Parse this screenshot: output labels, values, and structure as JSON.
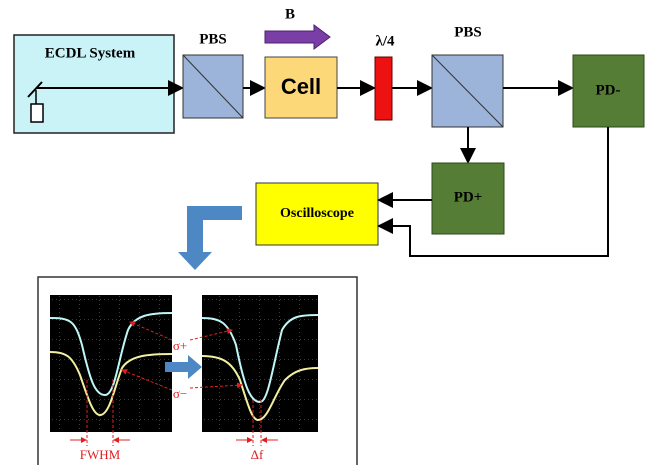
{
  "labels": {
    "ecdl": "ECDL System",
    "pbs1": "PBS",
    "field": "B",
    "cell": "Cell",
    "waveplate": "λ/4",
    "pbs2": "PBS",
    "pd_minus": "PD-",
    "pd_plus": "PD+",
    "oscilloscope": "Oscilloscope"
  },
  "inset": {
    "sigma_plus": "σ+",
    "sigma_minus": "σ−",
    "fwhm": "FWHM",
    "delta_f": "Δf"
  }
}
